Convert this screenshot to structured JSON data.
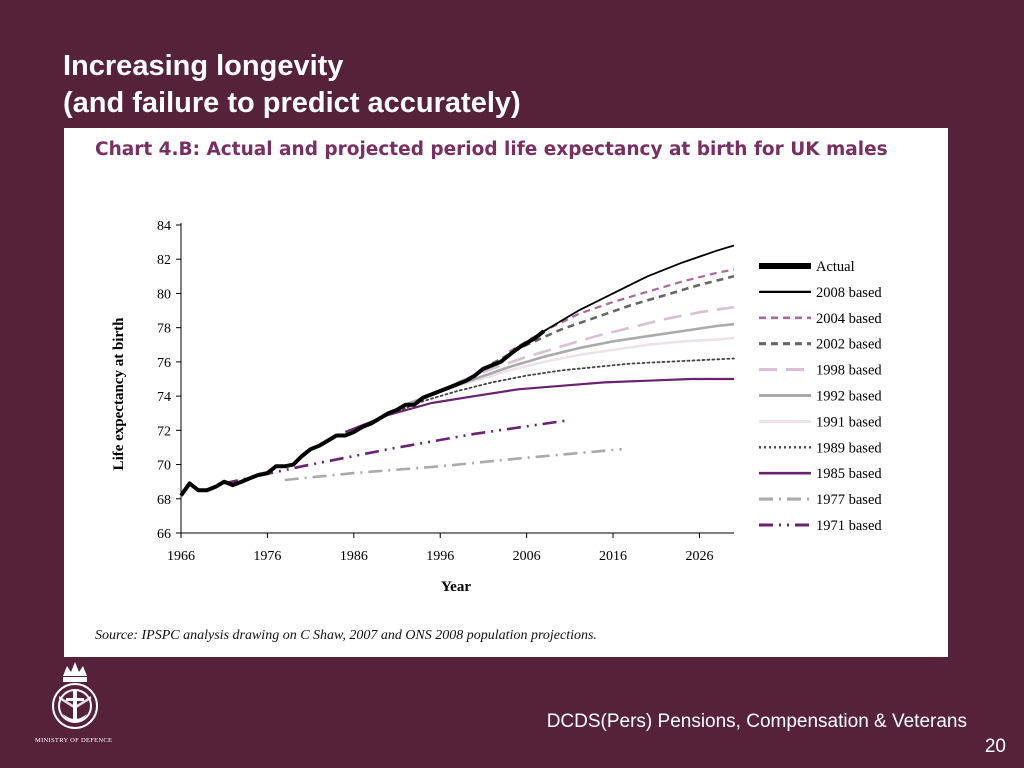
{
  "slide": {
    "title_line1": "Increasing longevity",
    "title_line2": "(and failure to predict accurately)",
    "footer": "DCDS(Pers) Pensions, Compensation & Veterans",
    "page_number": "20",
    "logo_text": "MINISTRY OF DEFENCE"
  },
  "chart_data": {
    "type": "line",
    "title": "Chart 4.B:  Actual and projected period life expectancy at birth for UK males",
    "xlabel": "Year",
    "ylabel": "Life expectancy at birth",
    "source": "Source: IPSPC analysis drawing on C Shaw, 2007 and ONS 2008 population projections.",
    "xlim": [
      1966,
      2030
    ],
    "ylim": [
      66,
      84
    ],
    "xticks": [
      "1966",
      "1976",
      "1986",
      "1996",
      "2006",
      "2016",
      "2026"
    ],
    "yticks": [
      "66",
      "68",
      "70",
      "72",
      "74",
      "76",
      "78",
      "80",
      "82",
      "84"
    ],
    "legend_position": "right",
    "series": [
      {
        "name": "Actual",
        "color": "#000000",
        "dash": "solid",
        "width": 4,
        "x": [
          1966,
          1967,
          1968,
          1969,
          1970,
          1971,
          1972,
          1973,
          1974,
          1975,
          1976,
          1977,
          1978,
          1979,
          1980,
          1981,
          1982,
          1983,
          1984,
          1985,
          1986,
          1987,
          1988,
          1989,
          1990,
          1991,
          1992,
          1993,
          1994,
          1995,
          1996,
          1997,
          1998,
          1999,
          2000,
          2001,
          2002,
          2003,
          2004,
          2005,
          2006,
          2007,
          2008
        ],
        "y": [
          68.2,
          68.9,
          68.5,
          68.5,
          68.7,
          69.0,
          68.8,
          69.0,
          69.2,
          69.4,
          69.5,
          69.9,
          69.9,
          70.0,
          70.5,
          70.9,
          71.1,
          71.4,
          71.7,
          71.7,
          71.9,
          72.2,
          72.4,
          72.7,
          73.0,
          73.2,
          73.5,
          73.5,
          73.9,
          74.1,
          74.3,
          74.5,
          74.7,
          74.9,
          75.2,
          75.6,
          75.8,
          76.0,
          76.4,
          76.8,
          77.1,
          77.4,
          77.8
        ]
      },
      {
        "name": "2008 based",
        "color": "#000000",
        "dash": "solid",
        "width": 1.8,
        "x": [
          2008,
          2012,
          2016,
          2020,
          2024,
          2028,
          2030
        ],
        "y": [
          77.8,
          79.0,
          80.0,
          81.0,
          81.8,
          82.5,
          82.8
        ]
      },
      {
        "name": "2004 based",
        "color": "#a7699e",
        "dash": "dash",
        "width": 2.2,
        "x": [
          2004,
          2008,
          2012,
          2016,
          2020,
          2024,
          2028,
          2030
        ],
        "y": [
          76.6,
          77.8,
          78.8,
          79.5,
          80.1,
          80.7,
          81.2,
          81.4
        ]
      },
      {
        "name": "2002 based",
        "color": "#666666",
        "dash": "dash",
        "width": 2.6,
        "x": [
          2002,
          2006,
          2010,
          2014,
          2018,
          2022,
          2026,
          2030
        ],
        "y": [
          75.9,
          77.0,
          77.9,
          78.6,
          79.3,
          79.9,
          80.5,
          81.0
        ]
      },
      {
        "name": "1998 based",
        "color": "#d9bfd4",
        "dash": "longdash",
        "width": 2.6,
        "x": [
          1998,
          2002,
          2006,
          2010,
          2014,
          2018,
          2022,
          2026,
          2030
        ],
        "y": [
          74.8,
          75.6,
          76.3,
          76.9,
          77.5,
          78.0,
          78.5,
          78.9,
          79.2
        ]
      },
      {
        "name": "1992 based",
        "color": "#aaaaaa",
        "dash": "solid",
        "width": 2.6,
        "x": [
          1992,
          1996,
          2000,
          2004,
          2008,
          2012,
          2016,
          2020,
          2024,
          2028,
          2030
        ],
        "y": [
          73.5,
          74.3,
          75.0,
          75.7,
          76.3,
          76.8,
          77.2,
          77.5,
          77.8,
          78.1,
          78.2
        ]
      },
      {
        "name": "1991 based",
        "color": "#ede1ea",
        "dash": "solid",
        "width": 2.6,
        "x": [
          1991,
          1996,
          2000,
          2004,
          2008,
          2012,
          2016,
          2020,
          2024,
          2028,
          2030
        ],
        "y": [
          73.3,
          74.3,
          74.9,
          75.5,
          76.0,
          76.4,
          76.7,
          77.0,
          77.2,
          77.3,
          77.4
        ]
      },
      {
        "name": "1989 based",
        "color": "#444444",
        "dash": "dot",
        "width": 1.8,
        "x": [
          1989,
          1994,
          1998,
          2002,
          2006,
          2010,
          2014,
          2018,
          2022,
          2026,
          2030
        ],
        "y": [
          72.7,
          73.7,
          74.3,
          74.8,
          75.2,
          75.5,
          75.7,
          75.9,
          76.0,
          76.1,
          76.2
        ]
      },
      {
        "name": "1985 based",
        "color": "#6b2270",
        "dash": "solid",
        "width": 2.2,
        "x": [
          1985,
          1990,
          1995,
          2000,
          2005,
          2010,
          2015,
          2020,
          2025,
          2030
        ],
        "y": [
          71.9,
          72.9,
          73.6,
          74.0,
          74.4,
          74.6,
          74.8,
          74.9,
          75.0,
          75.0
        ]
      },
      {
        "name": "1977 based",
        "color": "#aaaaaa",
        "dash": "dashdot",
        "width": 2.6,
        "x": [
          1978,
          1986,
          1996,
          2006,
          2017
        ],
        "y": [
          69.1,
          69.5,
          69.9,
          70.4,
          70.9
        ]
      },
      {
        "name": "1971 based",
        "color": "#6b2270",
        "dash": "dashdotdot",
        "width": 2.6,
        "x": [
          1971,
          1980,
          1990,
          2000,
          2011
        ],
        "y": [
          68.9,
          69.9,
          70.9,
          71.8,
          72.6
        ]
      }
    ]
  }
}
